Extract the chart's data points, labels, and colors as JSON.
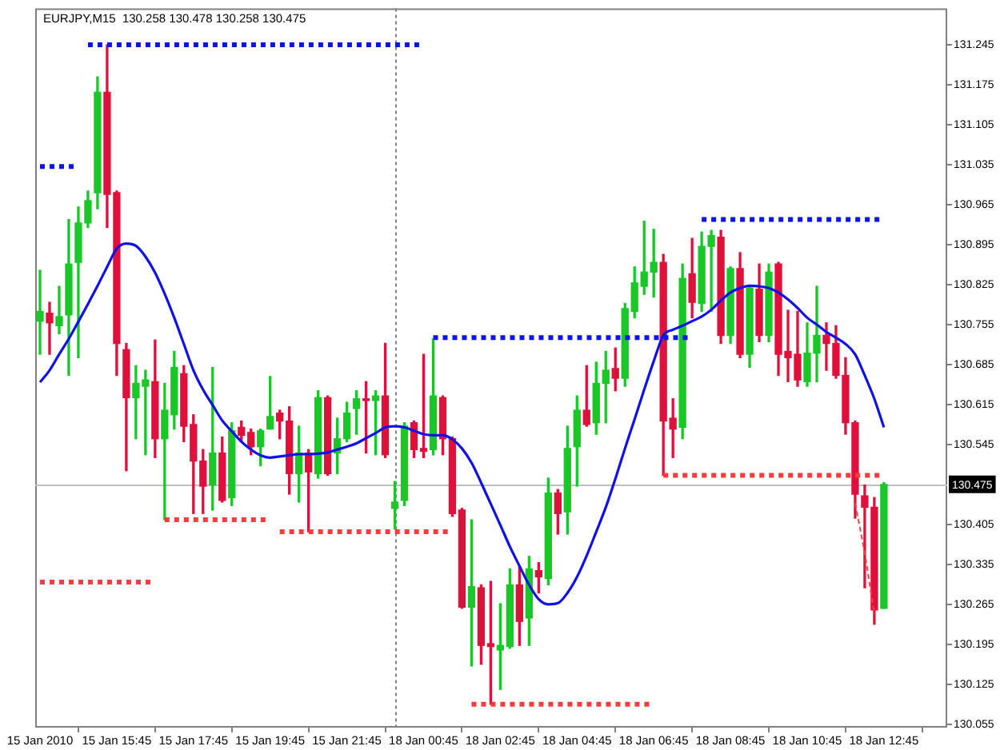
{
  "chart_data": {
    "type": "candlestick",
    "title": "EURJPY,M15  130.258 130.478 130.258 130.475",
    "categories": [
      "15 Jan 2010",
      null,
      null,
      null,
      null,
      null,
      null,
      null,
      "15 Jan 15:45",
      null,
      null,
      null,
      null,
      null,
      null,
      null,
      "15 Jan 17:45",
      null,
      null,
      null,
      null,
      null,
      null,
      null,
      "15 Jan 19:45",
      null,
      null,
      null,
      null,
      null,
      null,
      null,
      "15 Jan 21:45",
      null,
      null,
      null,
      null,
      null,
      null,
      null,
      "18 Jan 00:45",
      null,
      null,
      null,
      null,
      null,
      null,
      null,
      "18 Jan 02:45",
      null,
      null,
      null,
      null,
      null,
      null,
      null,
      "18 Jan 04:45",
      null,
      null,
      null,
      null,
      null,
      null,
      null,
      "18 Jan 06:45",
      null,
      null,
      null,
      null,
      null,
      null,
      null,
      "18 Jan 08:45",
      null,
      null,
      null,
      null,
      null,
      null,
      null,
      "18 Jan 10:45",
      null,
      null,
      null,
      null,
      null,
      null,
      null,
      "18 Jan 12:45"
    ],
    "ohlc": [
      [
        130.761,
        130.85,
        130.703,
        130.778
      ],
      [
        130.775,
        130.794,
        130.703,
        130.758
      ],
      [
        130.753,
        130.822,
        130.739,
        130.769
      ],
      [
        130.772,
        130.939,
        130.666,
        130.861
      ],
      [
        130.864,
        130.961,
        130.697,
        130.933
      ],
      [
        130.933,
        130.989,
        130.925,
        130.972
      ],
      [
        130.986,
        131.189,
        130.958,
        131.162
      ],
      [
        131.162,
        131.245,
        130.925,
        130.983
      ],
      [
        130.986,
        130.989,
        130.666,
        130.722
      ],
      [
        130.711,
        130.722,
        130.499,
        130.627
      ],
      [
        130.627,
        130.683,
        130.555,
        130.652
      ],
      [
        130.647,
        130.675,
        130.527,
        130.658
      ],
      [
        130.655,
        130.728,
        130.522,
        130.555
      ],
      [
        130.555,
        130.652,
        130.413,
        130.605
      ],
      [
        130.597,
        130.708,
        130.572,
        130.68
      ],
      [
        130.669,
        130.683,
        130.55,
        130.577
      ],
      [
        130.58,
        130.597,
        130.424,
        130.516
      ],
      [
        130.516,
        130.536,
        130.424,
        130.472
      ],
      [
        130.474,
        130.68,
        130.43,
        130.53
      ],
      [
        130.53,
        130.558,
        130.444,
        130.447
      ],
      [
        130.452,
        130.583,
        130.438,
        130.569
      ],
      [
        130.575,
        130.586,
        130.55,
        130.561
      ],
      [
        130.566,
        130.572,
        130.527,
        130.541
      ],
      [
        130.541,
        130.572,
        130.508,
        130.569
      ],
      [
        130.572,
        130.664,
        130.572,
        130.594
      ],
      [
        130.6,
        130.605,
        130.555,
        130.586
      ],
      [
        130.586,
        130.611,
        130.458,
        130.494
      ],
      [
        130.494,
        130.577,
        130.444,
        130.53
      ],
      [
        130.53,
        130.536,
        130.392,
        130.497
      ],
      [
        130.494,
        130.639,
        130.486,
        130.627
      ],
      [
        130.627,
        130.63,
        130.491,
        130.494
      ],
      [
        130.53,
        130.591,
        130.494,
        130.555
      ],
      [
        130.555,
        130.619,
        130.55,
        130.6
      ],
      [
        130.608,
        130.639,
        130.563,
        130.625
      ],
      [
        130.625,
        130.655,
        130.53,
        130.622
      ],
      [
        130.622,
        130.639,
        130.527,
        130.63
      ],
      [
        130.63,
        130.722,
        130.522,
        130.527
      ],
      [
        130.433,
        130.48,
        130.397,
        130.444
      ],
      [
        130.447,
        130.583,
        130.438,
        130.577
      ],
      [
        130.583,
        130.586,
        130.522,
        130.536
      ],
      [
        130.538,
        130.703,
        130.522,
        130.533
      ],
      [
        130.536,
        130.73,
        130.527,
        130.63
      ],
      [
        130.627,
        130.63,
        130.527,
        130.555
      ],
      [
        130.555,
        130.558,
        130.419,
        130.424
      ],
      [
        130.43,
        130.433,
        130.258,
        130.26
      ],
      [
        130.26,
        130.413,
        130.157,
        130.296
      ],
      [
        130.294,
        130.299,
        130.16,
        130.193
      ],
      [
        130.196,
        130.305,
        130.09,
        130.191
      ],
      [
        130.185,
        130.266,
        130.116,
        130.193
      ],
      [
        130.191,
        130.327,
        130.188,
        130.299
      ],
      [
        130.299,
        130.33,
        130.193,
        130.235
      ],
      [
        130.241,
        130.349,
        130.193,
        130.327
      ],
      [
        130.324,
        130.338,
        130.285,
        130.313
      ],
      [
        130.31,
        130.486,
        130.299,
        130.46
      ],
      [
        130.46,
        130.466,
        130.388,
        130.424
      ],
      [
        130.427,
        130.577,
        130.388,
        130.538
      ],
      [
        130.541,
        130.63,
        130.472,
        130.605
      ],
      [
        130.605,
        130.683,
        130.577,
        130.58
      ],
      [
        130.583,
        130.689,
        130.563,
        130.652
      ],
      [
        130.652,
        130.708,
        130.583,
        130.675
      ],
      [
        130.678,
        130.714,
        130.639,
        130.661
      ],
      [
        130.661,
        130.792,
        130.647,
        130.783
      ],
      [
        130.778,
        130.856,
        130.767,
        130.828
      ],
      [
        130.822,
        130.936,
        130.808,
        130.847
      ],
      [
        130.847,
        130.922,
        130.803,
        130.864
      ],
      [
        130.864,
        130.878,
        130.491,
        130.586
      ],
      [
        130.591,
        130.625,
        130.522,
        130.572
      ],
      [
        130.575,
        130.861,
        130.555,
        130.836
      ],
      [
        130.844,
        130.906,
        130.767,
        130.794
      ],
      [
        130.792,
        130.917,
        130.778,
        130.892
      ],
      [
        130.892,
        130.92,
        130.778,
        130.911
      ],
      [
        130.908,
        130.92,
        130.722,
        130.736
      ],
      [
        130.736,
        130.856,
        130.722,
        130.853
      ],
      [
        130.853,
        130.881,
        130.697,
        130.703
      ],
      [
        130.703,
        130.822,
        130.68,
        130.819
      ],
      [
        130.817,
        130.861,
        130.725,
        130.736
      ],
      [
        130.736,
        130.861,
        130.725,
        130.847
      ],
      [
        130.861,
        130.864,
        130.666,
        130.703
      ],
      [
        130.708,
        130.78,
        130.655,
        130.697
      ],
      [
        130.703,
        130.778,
        130.647,
        130.658
      ],
      [
        130.655,
        130.758,
        130.647,
        130.705
      ],
      [
        130.705,
        130.822,
        130.655,
        130.736
      ],
      [
        130.736,
        130.758,
        130.675,
        130.722
      ],
      [
        130.722,
        130.753,
        130.661,
        130.666
      ],
      [
        130.666,
        130.697,
        130.563,
        130.583
      ],
      [
        130.583,
        130.586,
        130.416,
        130.458
      ],
      [
        130.455,
        130.474,
        130.294,
        130.435
      ],
      [
        130.435,
        130.452,
        130.23,
        130.255
      ],
      [
        130.258,
        130.478,
        130.258,
        130.475
      ]
    ],
    "colors": [
      "#19c828",
      "#e0103c",
      "#19c828",
      "#19c828",
      "#19c828",
      "#19c828",
      "#19c828",
      "#e0103c",
      "#e0103c",
      "#e0103c",
      "#19c828",
      "#19c828",
      "#e0103c",
      "#19c828",
      "#19c828",
      "#e0103c",
      "#e0103c",
      "#e0103c",
      "#19c828",
      "#e0103c",
      "#19c828",
      "#e0103c",
      "#e0103c",
      "#19c828",
      "#19c828",
      "#e0103c",
      "#e0103c",
      "#19c828",
      "#e0103c",
      "#19c828",
      "#e0103c",
      "#19c828",
      "#19c828",
      "#19c828",
      "#e0103c",
      "#19c828",
      "#e0103c",
      "#19c828",
      "#19c828",
      "#e0103c",
      "#e0103c",
      "#19c828",
      "#e0103c",
      "#e0103c",
      "#e0103c",
      "#19c828",
      "#e0103c",
      "#e0103c",
      "#19c828",
      "#19c828",
      "#e0103c",
      "#19c828",
      "#e0103c",
      "#19c828",
      "#e0103c",
      "#19c828",
      "#19c828",
      "#e0103c",
      "#19c828",
      "#19c828",
      "#e0103c",
      "#19c828",
      "#19c828",
      "#19c828",
      "#19c828",
      "#e0103c",
      "#e0103c",
      "#19c828",
      "#e0103c",
      "#19c828",
      "#19c828",
      "#e0103c",
      "#19c828",
      "#e0103c",
      "#19c828",
      "#e0103c",
      "#19c828",
      "#e0103c",
      "#e0103c",
      "#e0103c",
      "#19c828",
      "#19c828",
      "#e0103c",
      "#e0103c",
      "#e0103c",
      "#e0103c",
      "#e0103c",
      "#e0103c",
      "#19c828"
    ],
    "series": [
      {
        "type": "line",
        "color": "#1010e8",
        "values": [
          130.654,
          130.675,
          130.703,
          130.73,
          130.76,
          130.791,
          130.823,
          130.856,
          130.888,
          130.897,
          130.893,
          130.874,
          130.846,
          130.809,
          130.767,
          130.721,
          130.675,
          130.641,
          130.614,
          130.587,
          130.568,
          130.55,
          130.536,
          130.526,
          130.522,
          130.524,
          130.526,
          130.528,
          130.528,
          130.529,
          130.531,
          130.536,
          130.541,
          130.547,
          130.556,
          130.565,
          130.575,
          130.577,
          130.575,
          130.569,
          130.563,
          130.561,
          130.561,
          130.554,
          130.538,
          130.513,
          130.478,
          130.441,
          130.404,
          130.366,
          130.332,
          130.299,
          130.274,
          130.265,
          130.267,
          130.285,
          130.313,
          130.35,
          130.392,
          130.435,
          130.485,
          130.538,
          130.589,
          130.641,
          130.691,
          130.736,
          130.746,
          130.753,
          130.761,
          130.769,
          130.781,
          130.797,
          130.811,
          130.819,
          130.823,
          130.822,
          130.819,
          130.811,
          130.799,
          130.784,
          130.767,
          130.755,
          130.742,
          130.732,
          130.721,
          130.703,
          130.666,
          130.625,
          130.575
        ]
      },
      {
        "type": "line",
        "color": "#0a14f0",
        "line_style": "dotted",
        "values": [
          131.032,
          131.032,
          131.032,
          131.032,
          131.032,
          null,
          null,
          null,
          null,
          null,
          null,
          null,
          null,
          null,
          null,
          null,
          null,
          null,
          null,
          null,
          null,
          null,
          null,
          null,
          null,
          null,
          null,
          null,
          null,
          null,
          null,
          null,
          null,
          null,
          null,
          null,
          null,
          null,
          null,
          null,
          null,
          null,
          null,
          null,
          null,
          null,
          null,
          null,
          null,
          null,
          null,
          null,
          null,
          null,
          null,
          null,
          null,
          null,
          null,
          null,
          null,
          null,
          null,
          null,
          null,
          null,
          null,
          null,
          null,
          null,
          null,
          null,
          null,
          null,
          null,
          null,
          null,
          null,
          null,
          null,
          null,
          null,
          null,
          null,
          null,
          null,
          null,
          null,
          null
        ]
      },
      {
        "type": "line",
        "color": "#0a14f0",
        "line_style": "dotted",
        "values": [
          null,
          null,
          null,
          null,
          null,
          131.245,
          131.245,
          131.245,
          131.245,
          131.245,
          131.245,
          131.245,
          131.245,
          131.245,
          131.245,
          131.245,
          131.245,
          131.245,
          131.245,
          131.245,
          131.245,
          131.245,
          131.245,
          131.245,
          131.245,
          131.245,
          131.245,
          131.245,
          131.245,
          131.245,
          131.245,
          131.245,
          131.245,
          131.245,
          131.245,
          131.245,
          131.245,
          131.245,
          131.245,
          131.245,
          131.245,
          null,
          null,
          null,
          null,
          null,
          null,
          null,
          null,
          null,
          null,
          null,
          null,
          null,
          null,
          null,
          null,
          null,
          null,
          null,
          null,
          null,
          null,
          null,
          null,
          null,
          null,
          null,
          null,
          null,
          null,
          null,
          null,
          null,
          null,
          null,
          null,
          null,
          null,
          null,
          null,
          null,
          null,
          null,
          null,
          null,
          null,
          null,
          null
        ]
      },
      {
        "type": "line",
        "color": "#0a14f0",
        "line_style": "dotted",
        "values": [
          null,
          null,
          null,
          null,
          null,
          null,
          null,
          null,
          null,
          null,
          null,
          null,
          null,
          null,
          null,
          null,
          null,
          null,
          null,
          null,
          null,
          null,
          null,
          null,
          null,
          null,
          null,
          null,
          null,
          null,
          null,
          null,
          null,
          null,
          null,
          null,
          null,
          null,
          null,
          null,
          null,
          130.732,
          130.732,
          130.732,
          130.732,
          130.732,
          130.732,
          130.732,
          130.732,
          130.732,
          130.732,
          130.732,
          130.732,
          130.732,
          130.732,
          130.732,
          130.732,
          130.732,
          130.732,
          130.732,
          130.732,
          130.732,
          130.732,
          130.732,
          130.732,
          130.732,
          130.732,
          130.732,
          130.732,
          null,
          null,
          null,
          null,
          null,
          null,
          null,
          null,
          null,
          null,
          null,
          null,
          null,
          null,
          null,
          null,
          null,
          null,
          null,
          null
        ]
      },
      {
        "type": "line",
        "color": "#0a14f0",
        "line_style": "dotted",
        "values": [
          null,
          null,
          null,
          null,
          null,
          null,
          null,
          null,
          null,
          null,
          null,
          null,
          null,
          null,
          null,
          null,
          null,
          null,
          null,
          null,
          null,
          null,
          null,
          null,
          null,
          null,
          null,
          null,
          null,
          null,
          null,
          null,
          null,
          null,
          null,
          null,
          null,
          null,
          null,
          null,
          null,
          null,
          null,
          null,
          null,
          null,
          null,
          null,
          null,
          null,
          null,
          null,
          null,
          null,
          null,
          null,
          null,
          null,
          null,
          null,
          null,
          null,
          null,
          null,
          null,
          null,
          null,
          null,
          null,
          130.939,
          130.939,
          130.939,
          130.939,
          130.939,
          130.939,
          130.939,
          130.939,
          130.939,
          130.939,
          130.939,
          130.939,
          130.939,
          130.939,
          130.939,
          130.939,
          130.939,
          130.939,
          130.939,
          130.939
        ]
      },
      {
        "type": "line",
        "color": "#ff3b3b",
        "line_style": "dotted",
        "values": [
          130.304,
          130.304,
          130.304,
          130.304,
          130.304,
          130.304,
          130.304,
          130.304,
          130.304,
          130.304,
          130.304,
          130.304,
          130.304,
          null,
          null,
          null,
          null,
          null,
          null,
          null,
          null,
          null,
          null,
          null,
          null,
          null,
          null,
          null,
          null,
          null,
          null,
          null,
          null,
          null,
          null,
          null,
          null,
          null,
          null,
          null,
          null,
          null,
          null,
          null,
          null,
          null,
          null,
          null,
          null,
          null,
          null,
          null,
          null,
          null,
          null,
          null,
          null,
          null,
          null,
          null,
          null,
          null,
          null,
          null,
          null,
          null,
          null,
          null,
          null,
          null,
          null,
          null,
          null,
          null,
          null,
          null,
          null,
          null,
          null,
          null,
          null,
          null,
          null,
          null,
          null,
          null,
          null,
          null,
          null
        ]
      },
      {
        "type": "line",
        "color": "#ff3b3b",
        "line_style": "dotted",
        "values": [
          null,
          null,
          null,
          null,
          null,
          null,
          null,
          null,
          null,
          null,
          null,
          null,
          null,
          130.413,
          130.413,
          130.413,
          130.413,
          130.413,
          130.413,
          130.413,
          130.413,
          130.413,
          130.413,
          130.413,
          130.413,
          null,
          null,
          null,
          null,
          null,
          null,
          null,
          null,
          null,
          null,
          null,
          null,
          null,
          null,
          null,
          null,
          null,
          null,
          null,
          null,
          null,
          null,
          null,
          null,
          null,
          null,
          null,
          null,
          null,
          null,
          null,
          null,
          null,
          null,
          null,
          null,
          null,
          null,
          null,
          null,
          null,
          null,
          null,
          null,
          null,
          null,
          null,
          null,
          null,
          null,
          null,
          null,
          null,
          null,
          null,
          null,
          null,
          null,
          null,
          null,
          null,
          null,
          null,
          null
        ]
      },
      {
        "type": "line",
        "color": "#ff3b3b",
        "line_style": "dotted",
        "values": [
          null,
          null,
          null,
          null,
          null,
          null,
          null,
          null,
          null,
          null,
          null,
          null,
          null,
          null,
          null,
          null,
          null,
          null,
          null,
          null,
          null,
          null,
          null,
          null,
          null,
          130.392,
          130.392,
          130.392,
          130.392,
          130.392,
          130.392,
          130.392,
          130.392,
          130.392,
          130.392,
          130.392,
          130.392,
          130.392,
          130.392,
          130.392,
          130.392,
          130.392,
          130.392,
          130.392,
          null,
          null,
          null,
          null,
          null,
          null,
          null,
          null,
          null,
          null,
          null,
          null,
          null,
          null,
          null,
          null,
          null,
          null,
          null,
          null,
          null,
          null,
          null,
          null,
          null,
          null,
          null,
          null,
          null,
          null,
          null,
          null,
          null,
          null,
          null,
          null,
          null,
          null,
          null,
          null,
          null,
          null,
          null,
          null,
          null
        ]
      },
      {
        "type": "line",
        "color": "#ff3b3b",
        "line_style": "dotted",
        "values": [
          null,
          null,
          null,
          null,
          null,
          null,
          null,
          null,
          null,
          null,
          null,
          null,
          null,
          null,
          null,
          null,
          null,
          null,
          null,
          null,
          null,
          null,
          null,
          null,
          null,
          null,
          null,
          null,
          null,
          null,
          null,
          null,
          null,
          null,
          null,
          null,
          null,
          null,
          null,
          null,
          null,
          null,
          null,
          null,
          null,
          130.09,
          130.09,
          130.09,
          130.09,
          130.09,
          130.09,
          130.09,
          130.09,
          130.09,
          130.09,
          130.09,
          130.09,
          130.09,
          130.09,
          130.09,
          130.09,
          130.09,
          130.09,
          130.09,
          130.09,
          null,
          null,
          null,
          null,
          null,
          null,
          null,
          null,
          null,
          null,
          null,
          null,
          null,
          null,
          null,
          null,
          null,
          null,
          null,
          null,
          null,
          null,
          null,
          null
        ]
      },
      {
        "type": "line",
        "color": "#ff3b3b",
        "line_style": "dotted",
        "values": [
          null,
          null,
          null,
          null,
          null,
          null,
          null,
          null,
          null,
          null,
          null,
          null,
          null,
          null,
          null,
          null,
          null,
          null,
          null,
          null,
          null,
          null,
          null,
          null,
          null,
          null,
          null,
          null,
          null,
          null,
          null,
          null,
          null,
          null,
          null,
          null,
          null,
          null,
          null,
          null,
          null,
          null,
          null,
          null,
          null,
          null,
          null,
          null,
          null,
          null,
          null,
          null,
          null,
          null,
          null,
          null,
          null,
          null,
          null,
          null,
          null,
          null,
          null,
          null,
          null,
          130.491,
          130.491,
          130.491,
          130.491,
          130.491,
          130.491,
          130.491,
          130.491,
          130.491,
          130.491,
          130.491,
          130.491,
          130.491,
          130.491,
          130.491,
          130.491,
          130.491,
          130.491,
          130.491,
          130.491,
          130.491,
          130.491,
          130.491,
          130.491
        ]
      },
      {
        "type": "line",
        "color": "#ff3b3b",
        "line_style": "dashed",
        "values": [
          null,
          null,
          null,
          null,
          null,
          null,
          null,
          null,
          null,
          null,
          null,
          null,
          null,
          null,
          null,
          null,
          null,
          null,
          null,
          null,
          null,
          null,
          null,
          null,
          null,
          null,
          null,
          null,
          null,
          null,
          null,
          null,
          null,
          null,
          null,
          null,
          null,
          null,
          null,
          null,
          null,
          null,
          null,
          null,
          null,
          null,
          null,
          null,
          null,
          null,
          null,
          null,
          null,
          null,
          null,
          null,
          null,
          null,
          null,
          null,
          null,
          null,
          null,
          null,
          null,
          null,
          null,
          null,
          null,
          null,
          null,
          null,
          null,
          null,
          null,
          null,
          null,
          null,
          null,
          null,
          null,
          null,
          null,
          null,
          null,
          130.442,
          130.354,
          130.248,
          null
        ]
      }
    ],
    "ylim": [
      130.049,
      131.309
    ],
    "yticks": [
      130.055,
      130.125,
      130.195,
      130.265,
      130.335,
      130.405,
      130.545,
      130.615,
      130.685,
      130.755,
      130.825,
      130.895,
      130.965,
      131.035,
      131.105,
      131.175,
      131.245
    ],
    "ref_lines": [
      {
        "axis": "y",
        "value": 130.475,
        "label": "130.475",
        "color": "#c0c0c0"
      }
    ],
    "grid": false
  }
}
